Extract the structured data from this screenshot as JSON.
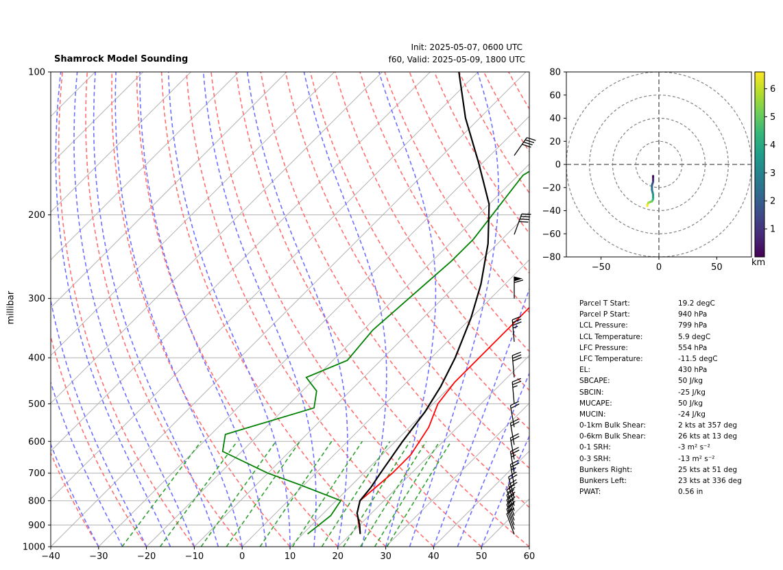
{
  "header": {
    "title": "Shamrock Model Sounding",
    "init": "Init: 2025-05-07, 0600 UTC",
    "valid": "f60, Valid: 2025-05-09, 1800 UTC"
  },
  "skewt_axes": {
    "ylabel": "millibar",
    "pressure_ticks": [
      "100",
      "200",
      "300",
      "400",
      "500",
      "600",
      "700",
      "800",
      "900",
      "1000"
    ],
    "temperature_ticks": [
      "-40",
      "-30",
      "-20",
      "-10",
      "0",
      "10",
      "20",
      "30",
      "40",
      "50",
      "60"
    ],
    "colors": {
      "temperature": "#ff0000",
      "dewpoint": "#008000",
      "parcel": "#000000",
      "dry_adiabat": "#ff6f6f",
      "moist_adiabat": "#6f6fff",
      "mixing_ratio": "#2ca02c",
      "isotherm": "#b0b0b0"
    }
  },
  "hodograph_axes": {
    "x_ticks": [
      "−50",
      "0",
      "50"
    ],
    "y_ticks": [
      "80",
      "60",
      "40",
      "20",
      "0",
      "−20",
      "−40",
      "−60",
      "−80"
    ],
    "colorbar_ticks": [
      "1",
      "2",
      "3",
      "4",
      "5",
      "6"
    ],
    "colorbar_unit": "km",
    "colormap": "viridis"
  },
  "stats": [
    {
      "label": "Parcel T Start:",
      "value": "19.2 degC"
    },
    {
      "label": "Parcel P Start:",
      "value": "940 hPa"
    },
    {
      "label": "LCL Pressure:",
      "value": "799 hPa"
    },
    {
      "label": "LCL Temperature:",
      "value": "5.9 degC"
    },
    {
      "label": "LFC Pressure:",
      "value": "554 hPa"
    },
    {
      "label": "LFC Temperature:",
      "value": "-11.5 degC"
    },
    {
      "label": "EL:",
      "value": "430 hPa"
    },
    {
      "label": "SBCAPE:",
      "value": "50 J/kg"
    },
    {
      "label": "SBCIN:",
      "value": "-25 J/kg"
    },
    {
      "label": "MUCAPE:",
      "value": "50 J/kg"
    },
    {
      "label": "MUCIN:",
      "value": "-24 J/kg"
    },
    {
      "label": "0-1km Bulk Shear:",
      "value": "2 kts at 357 deg"
    },
    {
      "label": "0-6km Bulk Shear:",
      "value": "26 kts at 13 deg"
    },
    {
      "label": "0-1 SRH:",
      "value": "-3 m² s⁻²"
    },
    {
      "label": "0-3 SRH:",
      "value": "-13 m² s⁻²"
    },
    {
      "label": "Bunkers Right:",
      "value": "25 kts at 51 deg"
    },
    {
      "label": "Bunkers Left:",
      "value": "23 kts at 336 deg"
    },
    {
      "label": "PWAT:",
      "value": "0.56 in"
    }
  ],
  "chart_data": [
    {
      "type": "line",
      "xlim": [
        -40,
        60
      ],
      "ylim": [
        1000,
        100
      ],
      "yscale": "log",
      "skew": true,
      "series": [
        {
          "name": "temperature",
          "points": [
            [
              22,
              940
            ],
            [
              17,
              850
            ],
            [
              15,
              800
            ],
            [
              16,
              700
            ],
            [
              16,
              640
            ],
            [
              14,
              560
            ],
            [
              11,
              500
            ],
            [
              10,
              450
            ],
            [
              10,
              380
            ],
            [
              10,
              300
            ],
            [
              12,
              260
            ],
            [
              15,
              220
            ],
            [
              19,
              185
            ],
            [
              27,
              150
            ],
            [
              35,
              120
            ],
            [
              39,
              100
            ]
          ]
        },
        {
          "name": "dewpoint",
          "points": [
            [
              11,
              940
            ],
            [
              12,
              860
            ],
            [
              11,
              800
            ],
            [
              -1,
              740
            ],
            [
              -10,
              700
            ],
            [
              -24,
              630
            ],
            [
              -27,
              580
            ],
            [
              -14,
              510
            ],
            [
              -17,
              470
            ],
            [
              -22,
              440
            ],
            [
              -17,
              405
            ],
            [
              -18,
              350
            ],
            [
              -16,
              250
            ],
            [
              -16,
              225
            ],
            [
              -19,
              165
            ],
            [
              -13,
              135
            ],
            [
              -7,
              110
            ],
            [
              -3,
              100
            ]
          ]
        },
        {
          "name": "parcel",
          "points": [
            [
              22,
              940
            ],
            [
              20,
              900
            ],
            [
              17,
              850
            ],
            [
              15,
              800
            ],
            [
              14.5,
              750
            ],
            [
              13.5,
              700
            ],
            [
              11.5,
              600
            ],
            [
              10,
              520
            ],
            [
              8,
              460
            ],
            [
              5,
              400
            ],
            [
              0,
              330
            ],
            [
              -5,
              280
            ],
            [
              -12,
              230
            ],
            [
              -20,
              190
            ],
            [
              -31,
              155
            ],
            [
              -43,
              125
            ],
            [
              -54,
              100
            ]
          ]
        }
      ],
      "wind_barbs": [
        {
          "p": 942,
          "dir": 340,
          "speed": 10
        },
        {
          "p": 920,
          "dir": 340,
          "speed": 15
        },
        {
          "p": 900,
          "dir": 340,
          "speed": 20
        },
        {
          "p": 880,
          "dir": 340,
          "speed": 20
        },
        {
          "p": 860,
          "dir": 340,
          "speed": 20
        },
        {
          "p": 840,
          "dir": 340,
          "speed": 20
        },
        {
          "p": 820,
          "dir": 345,
          "speed": 20
        },
        {
          "p": 790,
          "dir": 345,
          "speed": 20
        },
        {
          "p": 745,
          "dir": 350,
          "speed": 25
        },
        {
          "p": 700,
          "dir": 350,
          "speed": 25
        },
        {
          "p": 655,
          "dir": 350,
          "speed": 20
        },
        {
          "p": 610,
          "dir": 350,
          "speed": 20
        },
        {
          "p": 560,
          "dir": 350,
          "speed": 20
        },
        {
          "p": 500,
          "dir": 355,
          "speed": 25
        },
        {
          "p": 440,
          "dir": 355,
          "speed": 30
        },
        {
          "p": 370,
          "dir": 355,
          "speed": 35
        },
        {
          "p": 300,
          "dir": 360,
          "speed": 60
        },
        {
          "p": 220,
          "dir": 20,
          "speed": 40
        },
        {
          "p": 150,
          "dir": 35,
          "speed": 40
        }
      ]
    },
    {
      "type": "line",
      "xlim": [
        -80,
        80
      ],
      "ylim": [
        -80,
        80
      ],
      "series": [
        {
          "name": "hodograph",
          "points": [
            [
              -5,
              -10
            ],
            [
              -5,
              -12
            ],
            [
              -5,
              -15
            ],
            [
              -6,
              -18
            ],
            [
              -6,
              -22
            ],
            [
              -5,
              -26
            ],
            [
              -5,
              -30
            ],
            [
              -6,
              -32
            ],
            [
              -9,
              -33
            ],
            [
              -10,
              -35
            ],
            [
              -10,
              -36
            ]
          ]
        }
      ],
      "rings": [
        20,
        40,
        60,
        80
      ],
      "colorbar_range": [
        0,
        6.6
      ]
    }
  ]
}
